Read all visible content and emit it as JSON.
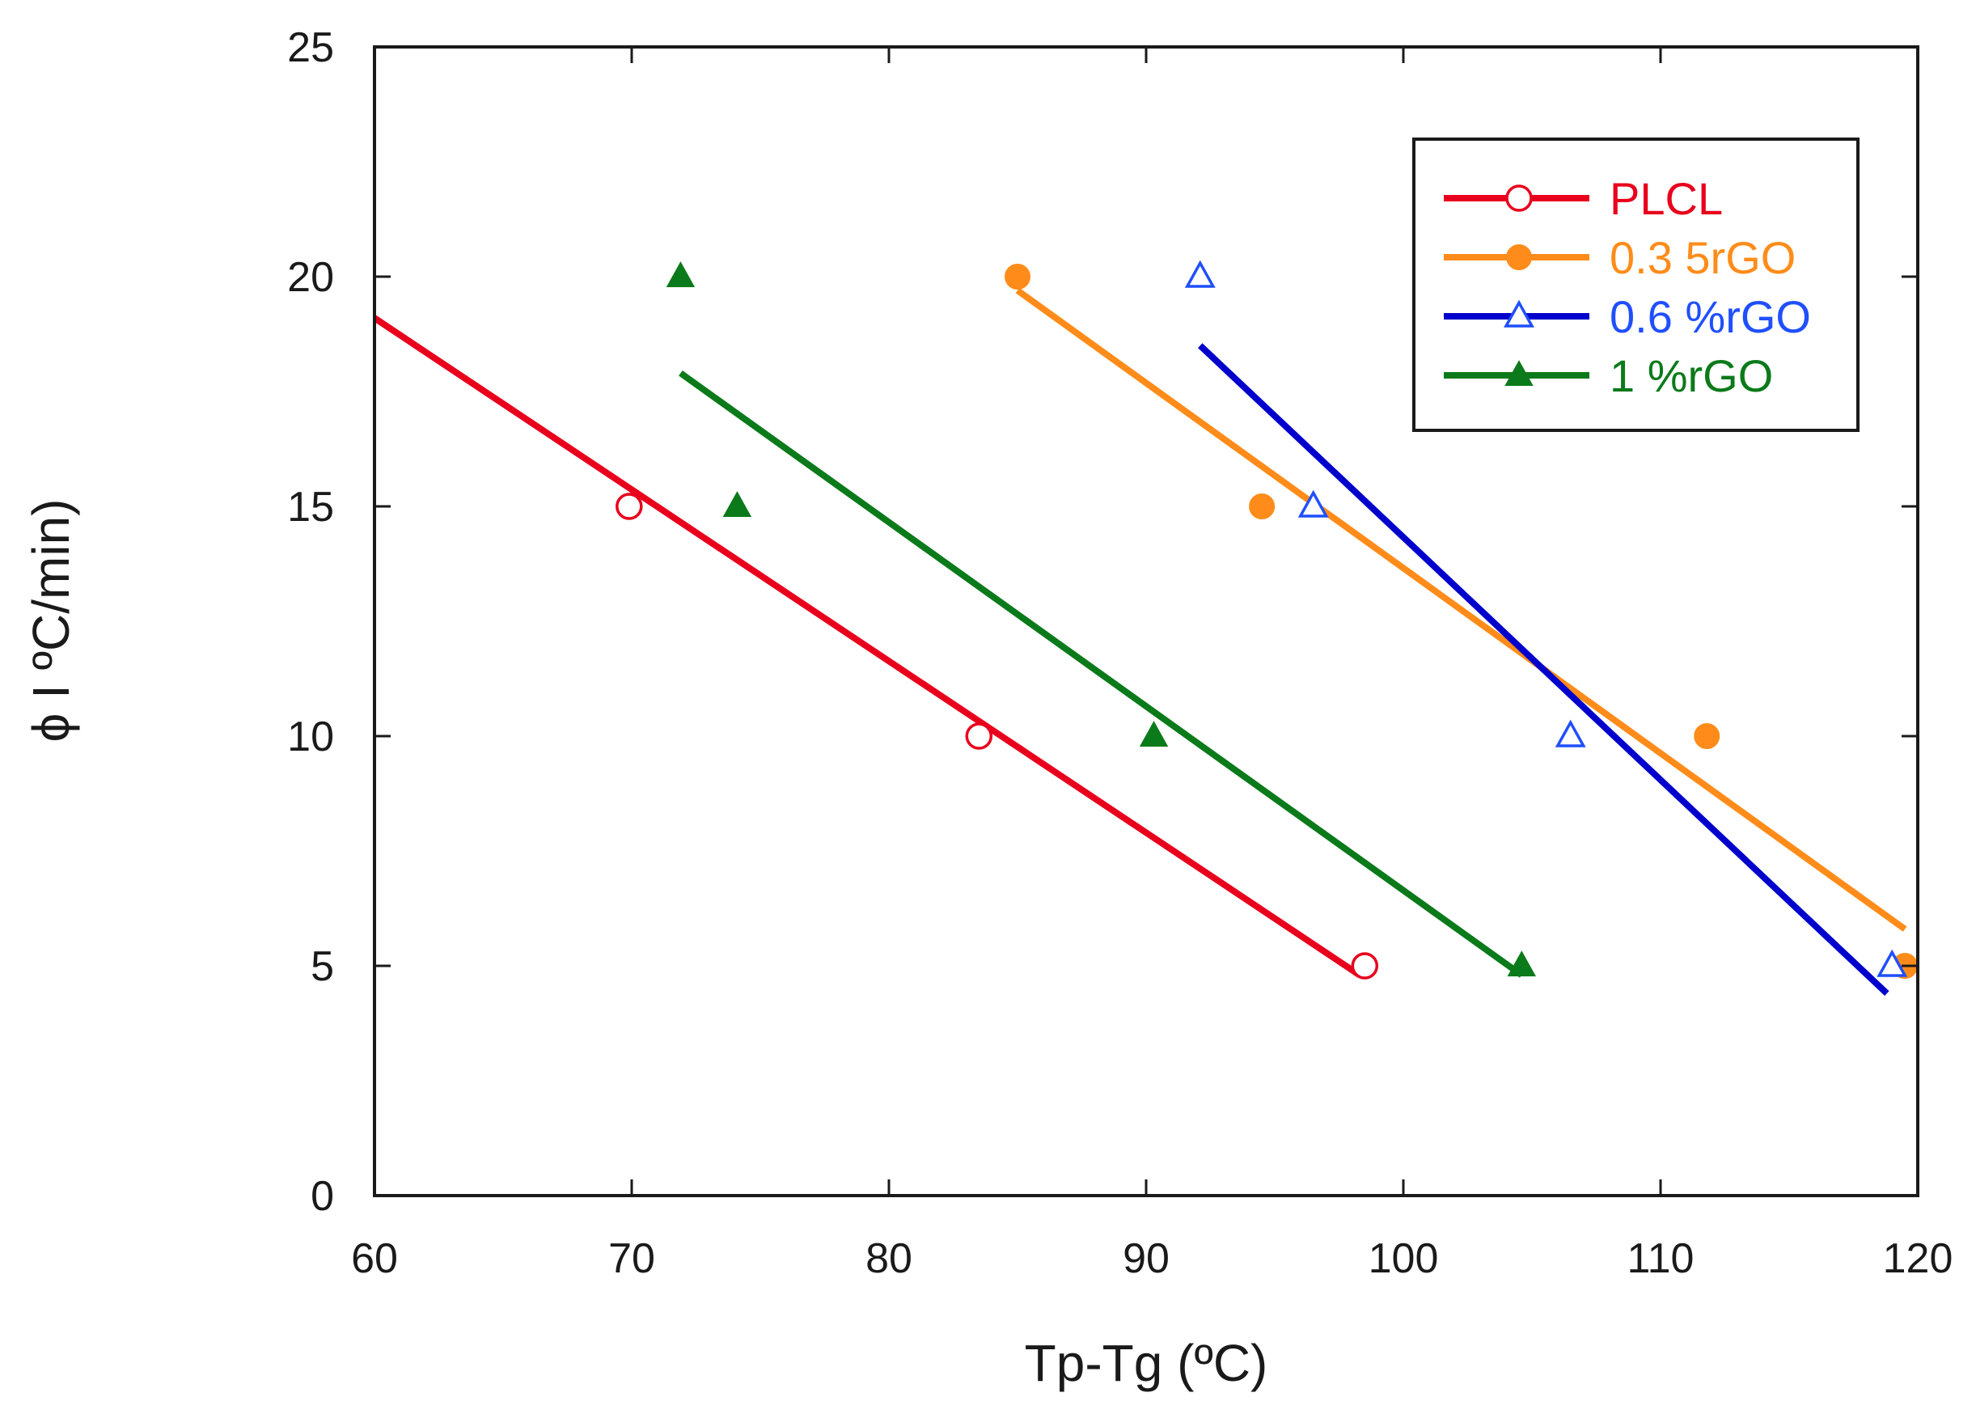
{
  "chart_data": {
    "type": "scatter",
    "title": "",
    "xlabel": "Tp-Tg (ºC)",
    "ylabel": "ϕ I ºC/min)",
    "xlim": [
      60,
      120
    ],
    "ylim": [
      0,
      25
    ],
    "xticks": [
      "60",
      "70",
      "80",
      "90",
      "100",
      "110",
      "120"
    ],
    "yticks": [
      "0",
      "5",
      "10",
      "15",
      "20",
      "25"
    ],
    "xtick_values": [
      60,
      70,
      80,
      90,
      100,
      110,
      120
    ],
    "ytick_values": [
      0,
      5,
      10,
      15,
      20,
      25
    ],
    "grid": false,
    "legend_position": "top-right",
    "series": [
      {
        "name": "PLCL",
        "color": "#e8001c",
        "marker": "open-circle",
        "points": [
          [
            69.9,
            15
          ],
          [
            83.5,
            10
          ],
          [
            98.5,
            5
          ]
        ],
        "fit": [
          [
            60,
            19.1
          ],
          [
            98.3,
            4.8
          ]
        ]
      },
      {
        "name": "0.3 5rGO",
        "color": "#ff8c1a",
        "marker": "filled-circle",
        "points": [
          [
            85.0,
            20
          ],
          [
            94.5,
            15
          ],
          [
            111.8,
            10
          ],
          [
            119.5,
            5
          ]
        ],
        "fit": [
          [
            85.0,
            19.7
          ],
          [
            119.5,
            5.8
          ]
        ]
      },
      {
        "name": "0.6 %rGO",
        "color": "#1f4fff",
        "line_color": "#0000cc",
        "marker": "open-triangle",
        "points": [
          [
            92.1,
            20
          ],
          [
            96.5,
            15
          ],
          [
            106.5,
            10
          ],
          [
            119.0,
            5
          ]
        ],
        "fit": [
          [
            92.1,
            18.5
          ],
          [
            118.8,
            4.4
          ]
        ]
      },
      {
        "name": "1 %rGO",
        "color": "#0b7a1a",
        "marker": "filled-triangle",
        "points": [
          [
            71.9,
            20
          ],
          [
            74.1,
            15
          ],
          [
            90.3,
            10
          ],
          [
            104.6,
            5
          ]
        ],
        "fit": [
          [
            71.9,
            17.9
          ],
          [
            104.6,
            4.8
          ]
        ]
      }
    ]
  }
}
